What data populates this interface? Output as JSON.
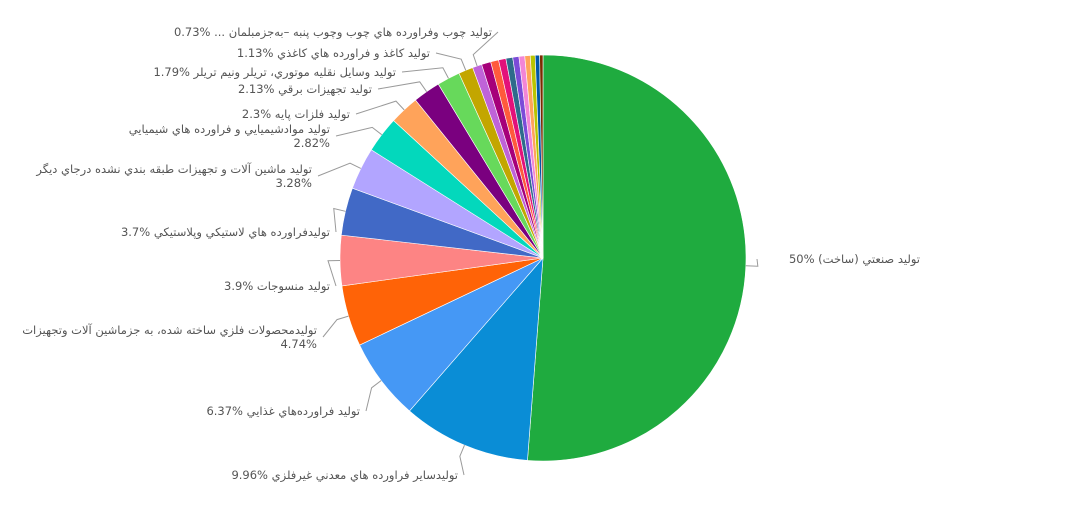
{
  "chart_data": {
    "type": "pie",
    "legend": "none",
    "slices": [
      {
        "label": "50% (تولید صنعتي (ساخت",
        "value": 50.0,
        "color": "#1fab3f"
      },
      {
        "label": "9.96% توليدساير فراورده هاي معدني غيرفلزي",
        "value": 9.96,
        "color": "#0a8dd6"
      },
      {
        "label": "6.37% توليد فراورده‌هاي غذايي",
        "value": 6.37,
        "color": "#4598f5"
      },
      {
        "label": "توليدمحصولات فلزي ساخته شده، به جزماشين آلات وتجهيزات|4.74%",
        "value": 4.74,
        "color": "#ff6307"
      },
      {
        "label": "3.9% توليد منسوجات",
        "value": 3.9,
        "color": "#fd8484"
      },
      {
        "label": "3.7% توليدفراورده هاي لاستيكي وپلاستيكي",
        "value": 3.7,
        "color": "#4169c6"
      },
      {
        "label": "توليد ماشين آلات و تجهيزات طبقه بندي نشده درجاي ديگر|3.28%",
        "value": 3.28,
        "color": "#b2a5ff"
      },
      {
        "label": "توليد موادشيميايي و فراورده هاي شيميايي|2.82%",
        "value": 2.82,
        "color": "#03d8bc"
      },
      {
        "label": "2.3% توليد فلزات پايه",
        "value": 2.3,
        "color": "#ffa35a"
      },
      {
        "label": "2.13% توليد تجهيزات برقي",
        "value": 2.13,
        "color": "#7a007f"
      },
      {
        "label": "1.79% توليد وسايل نقليه موتوري، تريلر ونيم تريلر",
        "value": 1.79,
        "color": "#67d95b"
      },
      {
        "label": "1.13% توليد كاغذ و فراورده هاي كاغذي",
        "value": 1.13,
        "color": "#c3a600"
      },
      {
        "label": "0.73% ... توليد چوب وفراورده هاي چوب وچوب پنبه –به‌جزمبلمان",
        "value": 0.73,
        "color": "#bf63d8"
      },
      {
        "label": "",
        "value": 0.72,
        "color": "#a6007a"
      },
      {
        "label": "",
        "value": 0.62,
        "color": "#ff5a3c"
      },
      {
        "label": "",
        "value": 0.57,
        "color": "#e3117a"
      },
      {
        "label": "",
        "value": 0.53,
        "color": "#2e6b8b"
      },
      {
        "label": "",
        "value": 0.48,
        "color": "#7b4bd8"
      },
      {
        "label": "",
        "value": 0.45,
        "color": "#f285d6"
      },
      {
        "label": "",
        "value": 0.42,
        "color": "#ffa35a"
      },
      {
        "label": "",
        "value": 0.38,
        "color": "#b9c400"
      },
      {
        "label": "",
        "value": 0.34,
        "color": "#0057a8"
      },
      {
        "label": "",
        "value": 0.26,
        "color": "#7a2b00"
      }
    ]
  }
}
